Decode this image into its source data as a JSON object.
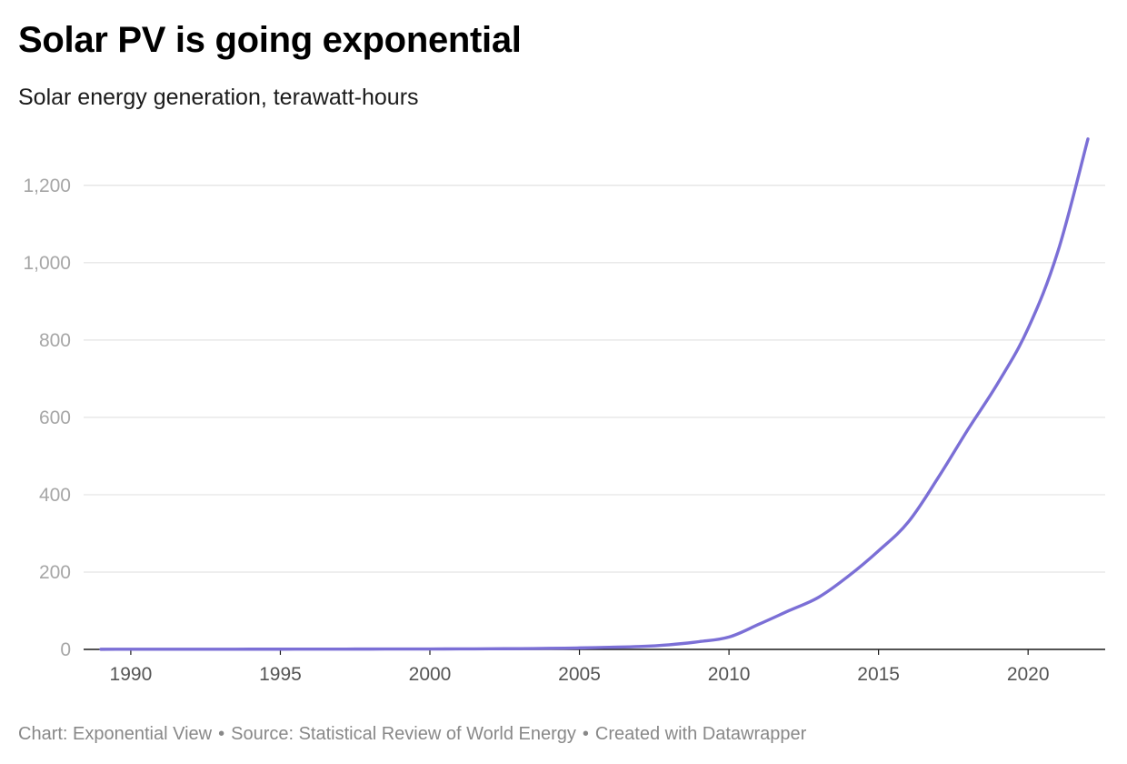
{
  "chart_data": {
    "type": "line",
    "title": "Solar PV is going exponential",
    "subtitle": "Solar energy generation, terawatt-hours",
    "xlabel": "",
    "ylabel": "",
    "xlim": [
      1989,
      2022
    ],
    "ylim": [
      0,
      1350
    ],
    "x_ticks": [
      1990,
      1995,
      2000,
      2005,
      2010,
      2015,
      2020
    ],
    "y_ticks": [
      0,
      200,
      400,
      600,
      800,
      1000,
      1200
    ],
    "y_tick_labels": [
      "0",
      "200",
      "400",
      "600",
      "800",
      "1,000",
      "1,200"
    ],
    "grid": true,
    "series": [
      {
        "name": "Solar energy generation",
        "color": "#7b6fd6",
        "x": [
          1989,
          1990,
          1991,
          1992,
          1993,
          1994,
          1995,
          1996,
          1997,
          1998,
          1999,
          2000,
          2001,
          2002,
          2003,
          2004,
          2005,
          2006,
          2007,
          2008,
          2009,
          2010,
          2011,
          2012,
          2013,
          2014,
          2015,
          2016,
          2017,
          2018,
          2019,
          2020,
          2021,
          2022
        ],
        "values": [
          0.3,
          0.4,
          0.4,
          0.5,
          0.5,
          0.6,
          0.6,
          0.7,
          0.8,
          0.9,
          1.0,
          1.1,
          1.3,
          1.6,
          2.0,
          2.7,
          3.8,
          5.4,
          7.4,
          12.0,
          20.0,
          32.0,
          65.0,
          100.0,
          135.0,
          190.0,
          255.0,
          330.0,
          445.0,
          570.0,
          690.0,
          830.0,
          1030.0,
          1320.0
        ]
      }
    ],
    "source": {
      "chart_by": "Chart: Exponential View",
      "source": "Source: Statistical Review of World Energy",
      "created_with": "Created with Datawrapper",
      "separator": "•"
    }
  }
}
